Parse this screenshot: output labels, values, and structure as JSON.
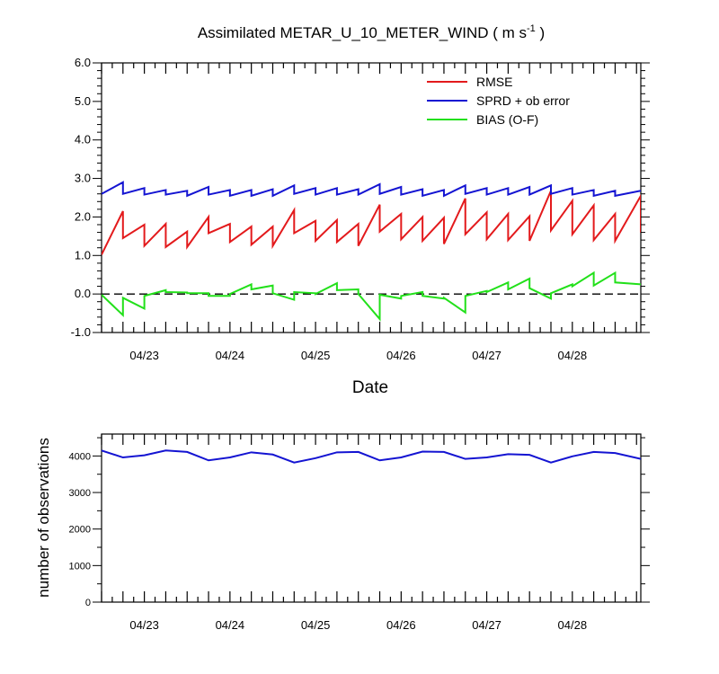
{
  "chart_data": [
    {
      "type": "line",
      "title": "Assimilated METAR_U_10_METER_WIND ( m s",
      "title_sup": "-1",
      "title_end": " )",
      "xlabel": "Date",
      "ylabel": "",
      "xlim": [
        0,
        6.3
      ],
      "ylim": [
        -1.0,
        6.0
      ],
      "yticks": [
        -1.0,
        0.0,
        1.0,
        2.0,
        3.0,
        4.0,
        5.0,
        6.0
      ],
      "ytick_labels": [
        "-1.0",
        "0.0",
        "1.0",
        "2.0",
        "3.0",
        "4.0",
        "5.0",
        "6.0"
      ],
      "xtick_positions": [
        0.5,
        1.5,
        2.5,
        3.5,
        4.5,
        5.5
      ],
      "xtick_labels": [
        "04/23",
        "04/24",
        "04/25",
        "04/26",
        "04/27",
        "04/28"
      ],
      "zero_line": true,
      "legend": [
        "RMSE",
        "SPRD + ob error",
        "BIAS (O-F)"
      ],
      "legend_position": "top-right",
      "series": [
        {
          "name": "RMSE",
          "color": "#e31a1c",
          "points": [
            [
              0,
              1.02
            ],
            [
              0.25,
              2.15
            ],
            [
              0.25,
              1.45
            ],
            [
              0.5,
              1.8
            ],
            [
              0.5,
              1.25
            ],
            [
              0.75,
              1.82
            ],
            [
              0.75,
              1.22
            ],
            [
              1.0,
              1.62
            ],
            [
              1.0,
              1.22
            ],
            [
              1.25,
              2.0
            ],
            [
              1.25,
              1.58
            ],
            [
              1.5,
              1.82
            ],
            [
              1.5,
              1.35
            ],
            [
              1.75,
              1.75
            ],
            [
              1.75,
              1.28
            ],
            [
              2.0,
              1.75
            ],
            [
              2.0,
              1.25
            ],
            [
              2.25,
              2.18
            ],
            [
              2.25,
              1.58
            ],
            [
              2.5,
              1.9
            ],
            [
              2.5,
              1.38
            ],
            [
              2.75,
              1.92
            ],
            [
              2.75,
              1.35
            ],
            [
              3.0,
              1.82
            ],
            [
              3.0,
              1.25
            ],
            [
              3.25,
              2.32
            ],
            [
              3.25,
              1.62
            ],
            [
              3.5,
              2.08
            ],
            [
              3.5,
              1.42
            ],
            [
              3.75,
              2.0
            ],
            [
              3.75,
              1.38
            ],
            [
              4.0,
              1.98
            ],
            [
              4.0,
              1.3
            ],
            [
              4.25,
              2.48
            ],
            [
              4.25,
              1.55
            ],
            [
              4.5,
              2.12
            ],
            [
              4.5,
              1.42
            ],
            [
              4.75,
              2.08
            ],
            [
              4.75,
              1.4
            ],
            [
              5.0,
              2.02
            ],
            [
              5.0,
              1.38
            ],
            [
              5.25,
              2.68
            ],
            [
              5.25,
              1.65
            ],
            [
              5.5,
              2.42
            ],
            [
              5.5,
              1.55
            ],
            [
              5.75,
              2.3
            ],
            [
              5.75,
              1.4
            ],
            [
              6.0,
              2.08
            ],
            [
              6.0,
              1.38
            ],
            [
              6.3,
              2.55
            ],
            [
              6.3,
              1.6
            ]
          ]
        },
        {
          "name": "SPRD + ob error",
          "color": "#1414d2",
          "points": [
            [
              0,
              2.6
            ],
            [
              0.25,
              2.9
            ],
            [
              0.25,
              2.6
            ],
            [
              0.5,
              2.75
            ],
            [
              0.5,
              2.58
            ],
            [
              0.75,
              2.7
            ],
            [
              0.75,
              2.58
            ],
            [
              1.0,
              2.68
            ],
            [
              1.0,
              2.55
            ],
            [
              1.25,
              2.78
            ],
            [
              1.25,
              2.58
            ],
            [
              1.5,
              2.7
            ],
            [
              1.5,
              2.55
            ],
            [
              1.75,
              2.7
            ],
            [
              1.75,
              2.55
            ],
            [
              2.0,
              2.72
            ],
            [
              2.0,
              2.55
            ],
            [
              2.25,
              2.82
            ],
            [
              2.25,
              2.6
            ],
            [
              2.5,
              2.75
            ],
            [
              2.5,
              2.58
            ],
            [
              2.75,
              2.75
            ],
            [
              2.75,
              2.58
            ],
            [
              3.0,
              2.72
            ],
            [
              3.0,
              2.58
            ],
            [
              3.25,
              2.85
            ],
            [
              3.25,
              2.6
            ],
            [
              3.5,
              2.78
            ],
            [
              3.5,
              2.58
            ],
            [
              3.75,
              2.72
            ],
            [
              3.75,
              2.55
            ],
            [
              4.0,
              2.7
            ],
            [
              4.0,
              2.55
            ],
            [
              4.25,
              2.82
            ],
            [
              4.25,
              2.6
            ],
            [
              4.5,
              2.75
            ],
            [
              4.5,
              2.58
            ],
            [
              4.75,
              2.75
            ],
            [
              4.75,
              2.58
            ],
            [
              5.0,
              2.78
            ],
            [
              5.0,
              2.58
            ],
            [
              5.25,
              2.82
            ],
            [
              5.25,
              2.6
            ],
            [
              5.5,
              2.75
            ],
            [
              5.5,
              2.58
            ],
            [
              5.75,
              2.7
            ],
            [
              5.75,
              2.55
            ],
            [
              6.0,
              2.68
            ],
            [
              6.0,
              2.55
            ],
            [
              6.3,
              2.68
            ]
          ]
        },
        {
          "name": "BIAS (O-F)",
          "color": "#22e01a",
          "points": [
            [
              0,
              -0.02
            ],
            [
              0.25,
              -0.55
            ],
            [
              0.25,
              -0.1
            ],
            [
              0.5,
              -0.38
            ],
            [
              0.5,
              -0.05
            ],
            [
              0.75,
              0.1
            ],
            [
              0.75,
              0.05
            ],
            [
              1.0,
              0.04
            ],
            [
              1.0,
              0.02
            ],
            [
              1.25,
              0.02
            ],
            [
              1.25,
              -0.05
            ],
            [
              1.5,
              -0.05
            ],
            [
              1.5,
              0.0
            ],
            [
              1.75,
              0.25
            ],
            [
              1.75,
              0.12
            ],
            [
              2.0,
              0.22
            ],
            [
              2.0,
              0.02
            ],
            [
              2.25,
              -0.15
            ],
            [
              2.25,
              0.05
            ],
            [
              2.5,
              0.02
            ],
            [
              2.5,
              0.0
            ],
            [
              2.75,
              0.28
            ],
            [
              2.75,
              0.1
            ],
            [
              3.0,
              0.12
            ],
            [
              3.0,
              0.0
            ],
            [
              3.25,
              -0.65
            ],
            [
              3.25,
              -0.02
            ],
            [
              3.5,
              -0.12
            ],
            [
              3.5,
              -0.05
            ],
            [
              3.75,
              0.05
            ],
            [
              3.75,
              -0.05
            ],
            [
              4.0,
              -0.12
            ],
            [
              4.0,
              -0.1
            ],
            [
              4.25,
              -0.48
            ],
            [
              4.25,
              -0.05
            ],
            [
              4.5,
              0.08
            ],
            [
              4.5,
              0.05
            ],
            [
              4.75,
              0.3
            ],
            [
              4.75,
              0.12
            ],
            [
              5.0,
              0.4
            ],
            [
              5.0,
              0.15
            ],
            [
              5.25,
              -0.12
            ],
            [
              5.25,
              0.02
            ],
            [
              5.5,
              0.25
            ],
            [
              5.5,
              0.2
            ],
            [
              5.75,
              0.55
            ],
            [
              5.75,
              0.22
            ],
            [
              6.0,
              0.55
            ],
            [
              6.0,
              0.3
            ],
            [
              6.3,
              0.25
            ]
          ]
        }
      ]
    },
    {
      "type": "line",
      "title": "",
      "xlabel": "",
      "ylabel": "number of observations",
      "xlim": [
        0,
        6.3
      ],
      "ylim": [
        0,
        4600
      ],
      "yticks": [
        0,
        1000,
        2000,
        3000,
        4000
      ],
      "ytick_labels": [
        "0",
        "1000",
        "2000",
        "3000",
        "4000"
      ],
      "xtick_positions": [
        0.5,
        1.5,
        2.5,
        3.5,
        4.5,
        5.5
      ],
      "xtick_labels": [
        "04/23",
        "04/24",
        "04/25",
        "04/26",
        "04/27",
        "04/28"
      ],
      "series": [
        {
          "name": "observations",
          "color": "#1414d2",
          "points": [
            [
              0,
              4150
            ],
            [
              0.25,
              3960
            ],
            [
              0.5,
              4020
            ],
            [
              0.75,
              4150
            ],
            [
              1.0,
              4110
            ],
            [
              1.25,
              3880
            ],
            [
              1.5,
              3960
            ],
            [
              1.75,
              4100
            ],
            [
              2.0,
              4040
            ],
            [
              2.25,
              3820
            ],
            [
              2.5,
              3940
            ],
            [
              2.75,
              4100
            ],
            [
              3.0,
              4110
            ],
            [
              3.25,
              3880
            ],
            [
              3.5,
              3960
            ],
            [
              3.75,
              4120
            ],
            [
              4.0,
              4110
            ],
            [
              4.25,
              3920
            ],
            [
              4.5,
              3960
            ],
            [
              4.75,
              4050
            ],
            [
              5.0,
              4030
            ],
            [
              5.25,
              3820
            ],
            [
              5.5,
              3990
            ],
            [
              5.75,
              4110
            ],
            [
              6.0,
              4080
            ],
            [
              6.3,
              3920
            ]
          ]
        }
      ]
    }
  ]
}
